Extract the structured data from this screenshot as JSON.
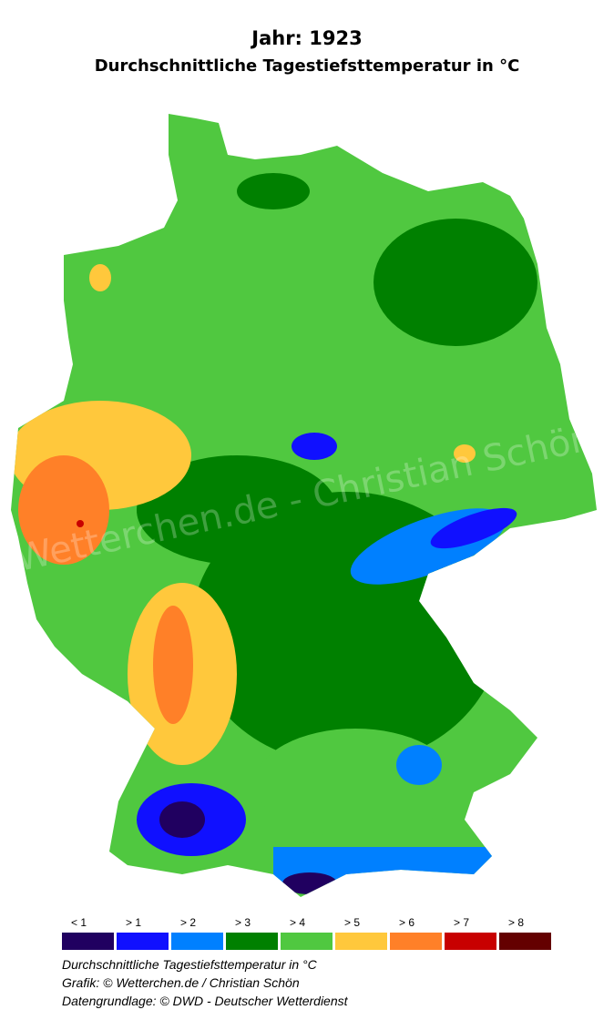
{
  "title": "Jahr: 1923",
  "subtitle": "Durchschnittliche Tagestiefsttemperatur in °C",
  "watermark": "Wetterchen.de - Christian Schön",
  "legend": [
    {
      "label": "< 1",
      "color": "#200060"
    },
    {
      "label": "> 1",
      "color": "#1010ff"
    },
    {
      "label": "> 2",
      "color": "#0080ff"
    },
    {
      "label": "> 3",
      "color": "#008000"
    },
    {
      "label": "> 4",
      "color": "#50c840"
    },
    {
      "label": "> 5",
      "color": "#ffc83c"
    },
    {
      "label": "> 6",
      "color": "#ff8028"
    },
    {
      "label": "> 7",
      "color": "#c80000"
    },
    {
      "label": "> 8",
      "color": "#640000"
    }
  ],
  "footer": {
    "line1": "Durchschnittliche Tagestiefsttemperatur in °C",
    "line2": "Grafik: © Wetterchen.de / Christian Schön",
    "line3": "Datengrundlage: © DWD - Deutscher Wetterdienst"
  }
}
